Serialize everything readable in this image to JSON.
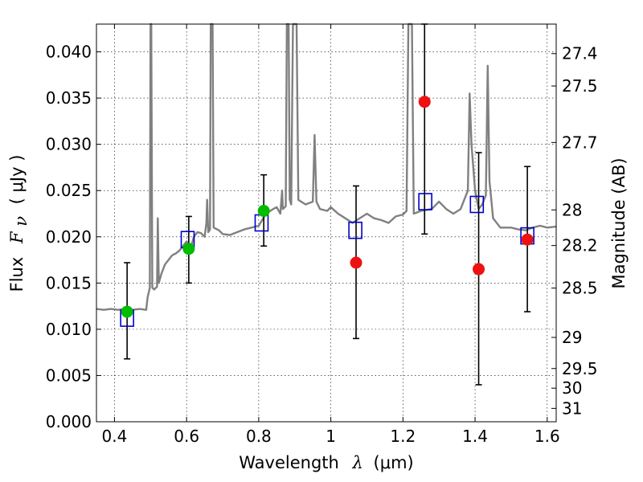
{
  "chart_data": {
    "type": "scatter",
    "xlabel": "Wavelength  λ (μm)",
    "xlabel_parts": {
      "text": "Wavelength",
      "symbol": "λ",
      "unit": "(μm)"
    },
    "ylabel": "Flux  Fν  ( μJy )",
    "ylabel_parts": {
      "text": "Flux",
      "symbol": "F",
      "subscript": "ν",
      "unit": "( μJy )"
    },
    "y2label": "Magnitude (AB)",
    "xlim": [
      0.35,
      1.625
    ],
    "ylim": [
      0.0,
      0.043
    ],
    "grid": true,
    "x_ticks": [
      {
        "value": 0.4,
        "label": "0.4"
      },
      {
        "value": 0.6,
        "label": "0.6"
      },
      {
        "value": 0.8,
        "label": "0.8"
      },
      {
        "value": 1.0,
        "label": "1"
      },
      {
        "value": 1.2,
        "label": "1.2"
      },
      {
        "value": 1.4,
        "label": "1.4"
      },
      {
        "value": 1.6,
        "label": "1.6"
      }
    ],
    "y_ticks": [
      {
        "value": 0.0,
        "label": "0.000"
      },
      {
        "value": 0.005,
        "label": "0.005"
      },
      {
        "value": 0.01,
        "label": "0.010"
      },
      {
        "value": 0.015,
        "label": "0.015"
      },
      {
        "value": 0.02,
        "label": "0.020"
      },
      {
        "value": 0.025,
        "label": "0.025"
      },
      {
        "value": 0.03,
        "label": "0.030"
      },
      {
        "value": 0.035,
        "label": "0.035"
      },
      {
        "value": 0.04,
        "label": "0.040"
      }
    ],
    "y2_ticks": [
      {
        "label": "27.4"
      },
      {
        "label": "27.5"
      },
      {
        "label": "27.7"
      },
      {
        "label": "28"
      },
      {
        "label": "28.2"
      },
      {
        "label": "28.5"
      },
      {
        "label": "29"
      },
      {
        "label": "29.5"
      },
      {
        "label": "30"
      },
      {
        "label": "31"
      }
    ],
    "colors": {
      "model": "#808080",
      "model_photometry": "#0000cc",
      "detections": "#00bb00",
      "weak": "#ee1111",
      "errorbar": "#000000"
    },
    "model_spectrum": [
      [
        0.35,
        0.0122
      ],
      [
        0.37,
        0.0121
      ],
      [
        0.39,
        0.0122
      ],
      [
        0.41,
        0.0121
      ],
      [
        0.43,
        0.0122
      ],
      [
        0.45,
        0.0121
      ],
      [
        0.47,
        0.0122
      ],
      [
        0.488,
        0.0121
      ],
      [
        0.492,
        0.0135
      ],
      [
        0.495,
        0.014
      ],
      [
        0.498,
        0.0145
      ],
      [
        0.5,
        0.043
      ],
      [
        0.502,
        0.043
      ],
      [
        0.505,
        0.0145
      ],
      [
        0.51,
        0.0143
      ],
      [
        0.518,
        0.0146
      ],
      [
        0.52,
        0.022
      ],
      [
        0.523,
        0.015
      ],
      [
        0.53,
        0.016
      ],
      [
        0.54,
        0.017
      ],
      [
        0.55,
        0.0175
      ],
      [
        0.56,
        0.018
      ],
      [
        0.57,
        0.0182
      ],
      [
        0.58,
        0.0185
      ],
      [
        0.59,
        0.019
      ],
      [
        0.6,
        0.0195
      ],
      [
        0.612,
        0.0188
      ],
      [
        0.62,
        0.02
      ],
      [
        0.63,
        0.0205
      ],
      [
        0.64,
        0.0204
      ],
      [
        0.65,
        0.02
      ],
      [
        0.655,
        0.0215
      ],
      [
        0.657,
        0.024
      ],
      [
        0.66,
        0.0205
      ],
      [
        0.665,
        0.0208
      ],
      [
        0.667,
        0.043
      ],
      [
        0.672,
        0.043
      ],
      [
        0.675,
        0.021
      ],
      [
        0.69,
        0.0207
      ],
      [
        0.7,
        0.0203
      ],
      [
        0.72,
        0.0202
      ],
      [
        0.74,
        0.0205
      ],
      [
        0.76,
        0.0208
      ],
      [
        0.78,
        0.021
      ],
      [
        0.8,
        0.0212
      ],
      [
        0.82,
        0.0225
      ],
      [
        0.84,
        0.023
      ],
      [
        0.85,
        0.0232
      ],
      [
        0.86,
        0.0225
      ],
      [
        0.865,
        0.025
      ],
      [
        0.867,
        0.023
      ],
      [
        0.875,
        0.0233
      ],
      [
        0.878,
        0.043
      ],
      [
        0.883,
        0.043
      ],
      [
        0.886,
        0.024
      ],
      [
        0.89,
        0.0235
      ],
      [
        0.895,
        0.043
      ],
      [
        0.905,
        0.043
      ],
      [
        0.91,
        0.024
      ],
      [
        0.93,
        0.0235
      ],
      [
        0.95,
        0.0238
      ],
      [
        0.955,
        0.031
      ],
      [
        0.96,
        0.0238
      ],
      [
        0.97,
        0.023
      ],
      [
        0.99,
        0.0228
      ],
      [
        1.0,
        0.0232
      ],
      [
        1.02,
        0.0225
      ],
      [
        1.04,
        0.022
      ],
      [
        1.06,
        0.0215
      ],
      [
        1.08,
        0.022
      ],
      [
        1.1,
        0.0225
      ],
      [
        1.12,
        0.022
      ],
      [
        1.14,
        0.0218
      ],
      [
        1.16,
        0.0215
      ],
      [
        1.18,
        0.0222
      ],
      [
        1.2,
        0.0224
      ],
      [
        1.21,
        0.0228
      ],
      [
        1.215,
        0.043
      ],
      [
        1.225,
        0.043
      ],
      [
        1.23,
        0.0225
      ],
      [
        1.25,
        0.0228
      ],
      [
        1.28,
        0.023
      ],
      [
        1.3,
        0.0238
      ],
      [
        1.32,
        0.023
      ],
      [
        1.34,
        0.0225
      ],
      [
        1.36,
        0.023
      ],
      [
        1.38,
        0.025
      ],
      [
        1.385,
        0.0355
      ],
      [
        1.39,
        0.03
      ],
      [
        1.4,
        0.025
      ],
      [
        1.41,
        0.023
      ],
      [
        1.42,
        0.0235
      ],
      [
        1.43,
        0.0245
      ],
      [
        1.435,
        0.0385
      ],
      [
        1.44,
        0.026
      ],
      [
        1.45,
        0.022
      ],
      [
        1.47,
        0.021
      ],
      [
        1.5,
        0.021
      ],
      [
        1.52,
        0.0208
      ],
      [
        1.54,
        0.0207
      ],
      [
        1.56,
        0.021
      ],
      [
        1.58,
        0.0212
      ],
      [
        1.6,
        0.021
      ],
      [
        1.625,
        0.0211
      ]
    ],
    "series": [
      {
        "marker": "square",
        "points": [
          {
            "x": 0.435,
            "y": 0.0112
          },
          {
            "x": 0.603,
            "y": 0.0197
          },
          {
            "x": 0.808,
            "y": 0.0215
          },
          {
            "x": 1.068,
            "y": 0.0207
          },
          {
            "x": 1.262,
            "y": 0.0238
          },
          {
            "x": 1.405,
            "y": 0.0235
          },
          {
            "x": 1.545,
            "y": 0.0201
          }
        ]
      },
      {
        "marker": "circle",
        "color": "green",
        "points": [
          {
            "x": 0.435,
            "y": 0.0119,
            "yerr_low": 0.0068,
            "yerr_high": 0.0172
          },
          {
            "x": 0.606,
            "y": 0.0187,
            "yerr_low": 0.015,
            "yerr_high": 0.0222
          },
          {
            "x": 0.814,
            "y": 0.0228,
            "yerr_low": 0.019,
            "yerr_high": 0.0267
          }
        ]
      },
      {
        "marker": "circle",
        "color": "red",
        "points": [
          {
            "x": 1.07,
            "y": 0.0172,
            "yerr_low": 0.009,
            "yerr_high": 0.0255
          },
          {
            "x": 1.26,
            "y": 0.0346,
            "yerr_low": 0.0203,
            "yerr_high": 0.043
          },
          {
            "x": 1.41,
            "y": 0.0165,
            "yerr_low": 0.004,
            "yerr_high": 0.0291
          },
          {
            "x": 1.545,
            "y": 0.0197,
            "yerr_low": 0.0119,
            "yerr_high": 0.0276
          }
        ]
      }
    ]
  }
}
